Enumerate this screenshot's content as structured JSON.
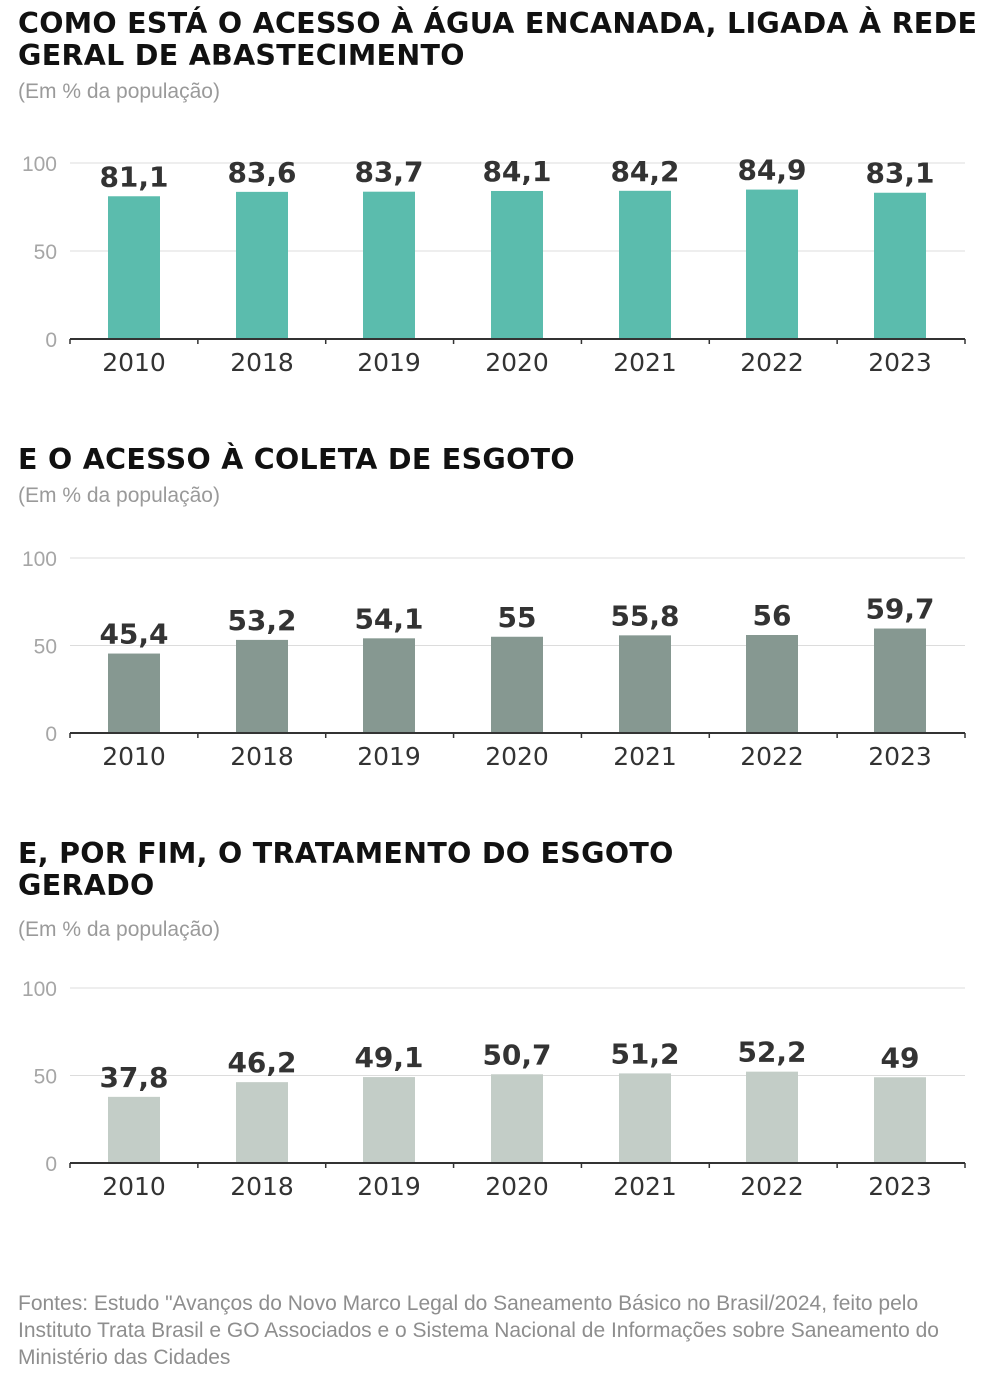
{
  "chart_data": [
    {
      "type": "bar",
      "title": "COMO ESTÁ O ACESSO À ÁGUA ENCANADA, LIGADA À REDE GERAL DE ABASTECIMENTO",
      "subtitle": "(Em % da população)",
      "categories": [
        "2010",
        "2018",
        "2019",
        "2020",
        "2021",
        "2022",
        "2023"
      ],
      "values": [
        81.1,
        83.6,
        83.7,
        84.1,
        84.2,
        84.9,
        83.1
      ],
      "value_labels": [
        "81,1",
        "83,6",
        "83,7",
        "84,1",
        "84,2",
        "84,9",
        "83,1"
      ],
      "yticks": [
        "100",
        "50",
        "0"
      ],
      "ylim": [
        0,
        100
      ],
      "grid": true,
      "color": "#5bbcad"
    },
    {
      "type": "bar",
      "title": "E O ACESSO À COLETA DE ESGOTO",
      "subtitle": "(Em % da população)",
      "categories": [
        "2010",
        "2018",
        "2019",
        "2020",
        "2021",
        "2022",
        "2023"
      ],
      "values": [
        45.4,
        53.2,
        54.1,
        55,
        55.8,
        56,
        59.7
      ],
      "value_labels": [
        "45,4",
        "53,2",
        "54,1",
        "55",
        "55,8",
        "56",
        "59,7"
      ],
      "yticks": [
        "100",
        "50",
        "0"
      ],
      "ylim": [
        0,
        100
      ],
      "grid": true,
      "color": "#869891"
    },
    {
      "type": "bar",
      "title": "E, POR FIM, O TRATAMENTO DO ESGOTO GERADO",
      "subtitle": "(Em % da população)",
      "categories": [
        "2010",
        "2018",
        "2019",
        "2020",
        "2021",
        "2022",
        "2023"
      ],
      "values": [
        37.8,
        46.2,
        49.1,
        50.7,
        51.2,
        52.2,
        49
      ],
      "value_labels": [
        "37,8",
        "46,2",
        "49,1",
        "50,7",
        "51,2",
        "52,2",
        "49"
      ],
      "yticks": [
        "100",
        "50",
        "0"
      ],
      "ylim": [
        0,
        100
      ],
      "grid": true,
      "color": "#c3cdc7"
    }
  ],
  "footer": {
    "source": "Fontes: Estudo \"Avanços do Novo Marco Legal do Saneamento Básico no Brasil/2024, feito pelo Instituto Trata Brasil e GO Associados e o Sistema Nacional de Informações sobre Saneamento do Ministério das Cidades"
  }
}
